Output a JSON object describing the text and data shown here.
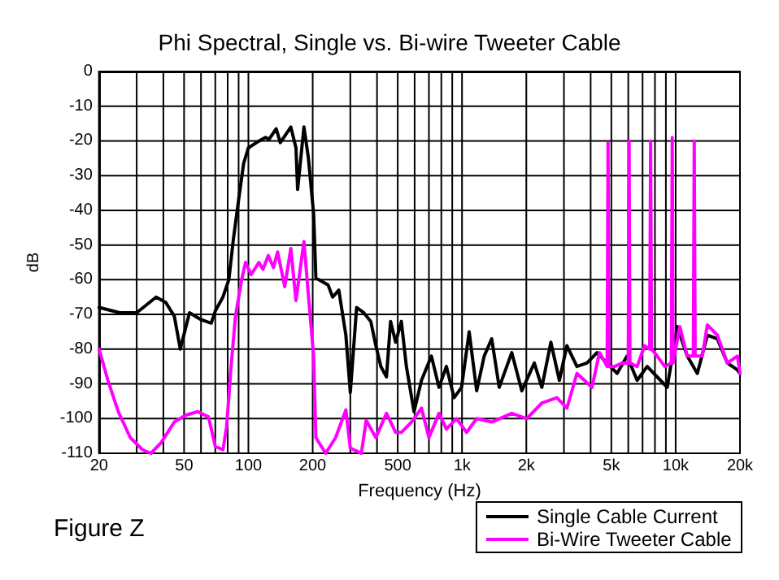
{
  "chart_data": {
    "type": "line",
    "title": "Phi Spectral, Single vs. Bi-wire Tweeter Cable",
    "xlabel": "Frequency (Hz)",
    "ylabel": "dB",
    "annotations": [
      "Figure Z"
    ],
    "log": "x",
    "grid": true,
    "legend": "bottom right",
    "marker": "none",
    "line_style": "solid",
    "xlim": [
      20,
      20000
    ],
    "xticks": [
      20,
      {
        "value": 30,
        "label": null
      },
      {
        "value": 40,
        "label": null
      },
      50,
      {
        "value": 60,
        "label": null
      },
      {
        "value": 70,
        "label": null
      },
      {
        "value": 80,
        "label": null
      },
      {
        "value": 90,
        "label": null
      },
      100,
      200,
      {
        "value": 300,
        "label": null
      },
      {
        "value": 400,
        "label": null
      },
      500,
      {
        "value": 600,
        "label": null
      },
      {
        "value": 700,
        "label": null
      },
      {
        "value": 800,
        "label": null
      },
      {
        "value": 900,
        "label": null
      },
      {
        "value": 1000,
        "label": "1k"
      },
      {
        "value": 2000,
        "label": "2k"
      },
      {
        "value": 3000,
        "label": null
      },
      {
        "value": 4000,
        "label": null
      },
      {
        "value": 5000,
        "label": "5k"
      },
      {
        "value": 6000,
        "label": null
      },
      {
        "value": 7000,
        "label": null
      },
      {
        "value": 8000,
        "label": null
      },
      {
        "value": 9000,
        "label": null
      },
      {
        "value": 10000,
        "label": "10k"
      },
      {
        "value": 20000,
        "label": "20k"
      }
    ],
    "ylim": [
      -110,
      0
    ],
    "yticks": [
      -110,
      -100,
      -90,
      -80,
      -70,
      -60,
      -50,
      -40,
      -30,
      -20,
      -10,
      0
    ],
    "series": [
      {
        "name": "Single Cable Current",
        "color": "#000000",
        "x": [
          20,
          25,
          30,
          37,
          41,
          45,
          48,
          53,
          60,
          67,
          70,
          76,
          81,
          85,
          90,
          95,
          100,
          109,
          120,
          125,
          135,
          141,
          158,
          167,
          170,
          182,
          191,
          202,
          207,
          236,
          248,
          265,
          286,
          300,
          321,
          347,
          374,
          395,
          417,
          443,
          463,
          489,
          520,
          549,
          596,
          646,
          719,
          780,
          845,
          918,
          995,
          1080,
          1171,
          1270,
          1377,
          1493,
          1709,
          1904,
          2180,
          2364,
          2605,
          2855,
          3097,
          3450,
          3844,
          4284,
          4773,
          5318,
          5925,
          6602,
          7356,
          8195,
          9131,
          10170,
          11330,
          12630,
          14070,
          15670,
          17460,
          19460,
          20000
        ],
        "values": [
          -68,
          -69.5,
          -69.5,
          -65,
          -66.5,
          -70.5,
          -80,
          -69.5,
          -71.5,
          -72.5,
          -69,
          -65,
          -60,
          -48.5,
          -37,
          -26.5,
          -22,
          -20.5,
          -19,
          -19.5,
          -16.5,
          -20.5,
          -16,
          -22,
          -34,
          -16,
          -25,
          -41,
          -59.5,
          -61.5,
          -65,
          -63,
          -76,
          -92.5,
          -68,
          -69.5,
          -72,
          -79,
          -85,
          -88,
          -72,
          -78,
          -72,
          -85,
          -98,
          -89,
          -82,
          -91,
          -85,
          -94,
          -91,
          -75,
          -92,
          -82,
          -77,
          -91,
          -81,
          -92,
          -84,
          -91,
          -78,
          -89,
          -79,
          -85,
          -84,
          -81,
          -84,
          -87,
          -82,
          -89,
          -85,
          -88,
          -91,
          -73.5,
          -82,
          -87,
          -76,
          -77,
          -84,
          -86,
          -87
        ]
      },
      {
        "name": "Bi-Wire Tweeter Cable",
        "color": "#ff00ff",
        "x": [
          20,
          22,
          24.6,
          28,
          32,
          35,
          39,
          45,
          51,
          58,
          65,
          70,
          76,
          79,
          83,
          87,
          93,
          97,
          103,
          112,
          117,
          124,
          131,
          137,
          148,
          158,
          167,
          182,
          191,
          202,
          207,
          230,
          256,
          286,
          300,
          338,
          356,
          395,
          443,
          489,
          520,
          580,
          646,
          700,
          780,
          845,
          943,
          1051,
          1171,
          1377,
          1709,
          2010,
          2364,
          2780,
          3097,
          3450,
          4058,
          4400,
          4780,
          4825,
          4870,
          5177,
          5610,
          6000,
          6055,
          6110,
          6602,
          7155,
          7560,
          7635,
          7710,
          8195,
          8888,
          9550,
          9640,
          9730,
          10450,
          11330,
          12100,
          12220,
          12340,
          13330,
          14070,
          15670,
          17460,
          19460,
          20000
        ],
        "values": [
          -80,
          -89,
          -98,
          -105.5,
          -109,
          -110,
          -107,
          -101,
          -99,
          -98,
          -99.5,
          -108,
          -109,
          -102.5,
          -85,
          -70.5,
          -60,
          -55,
          -58.5,
          -55,
          -57,
          -53,
          -56.5,
          -52,
          -62,
          -51,
          -66,
          -49,
          -64.5,
          -82,
          -105.5,
          -110,
          -105.5,
          -97.5,
          -108.5,
          -110,
          -100.5,
          -105.5,
          -98.5,
          -104,
          -104,
          -101,
          -97,
          -105.5,
          -98.5,
          -103,
          -100,
          -104,
          -100,
          -101,
          -98.5,
          -100,
          -95.5,
          -94,
          -97,
          -87,
          -91,
          -81,
          -85,
          -20.5,
          -85,
          -85,
          -84,
          -84,
          -20,
          -84,
          -85,
          -79,
          -80,
          -20,
          -80,
          -82,
          -85,
          -84,
          -19,
          -84,
          -73.5,
          -82,
          -82,
          -20,
          -82,
          -82,
          -73,
          -76,
          -84,
          -82,
          -87
        ]
      }
    ]
  }
}
